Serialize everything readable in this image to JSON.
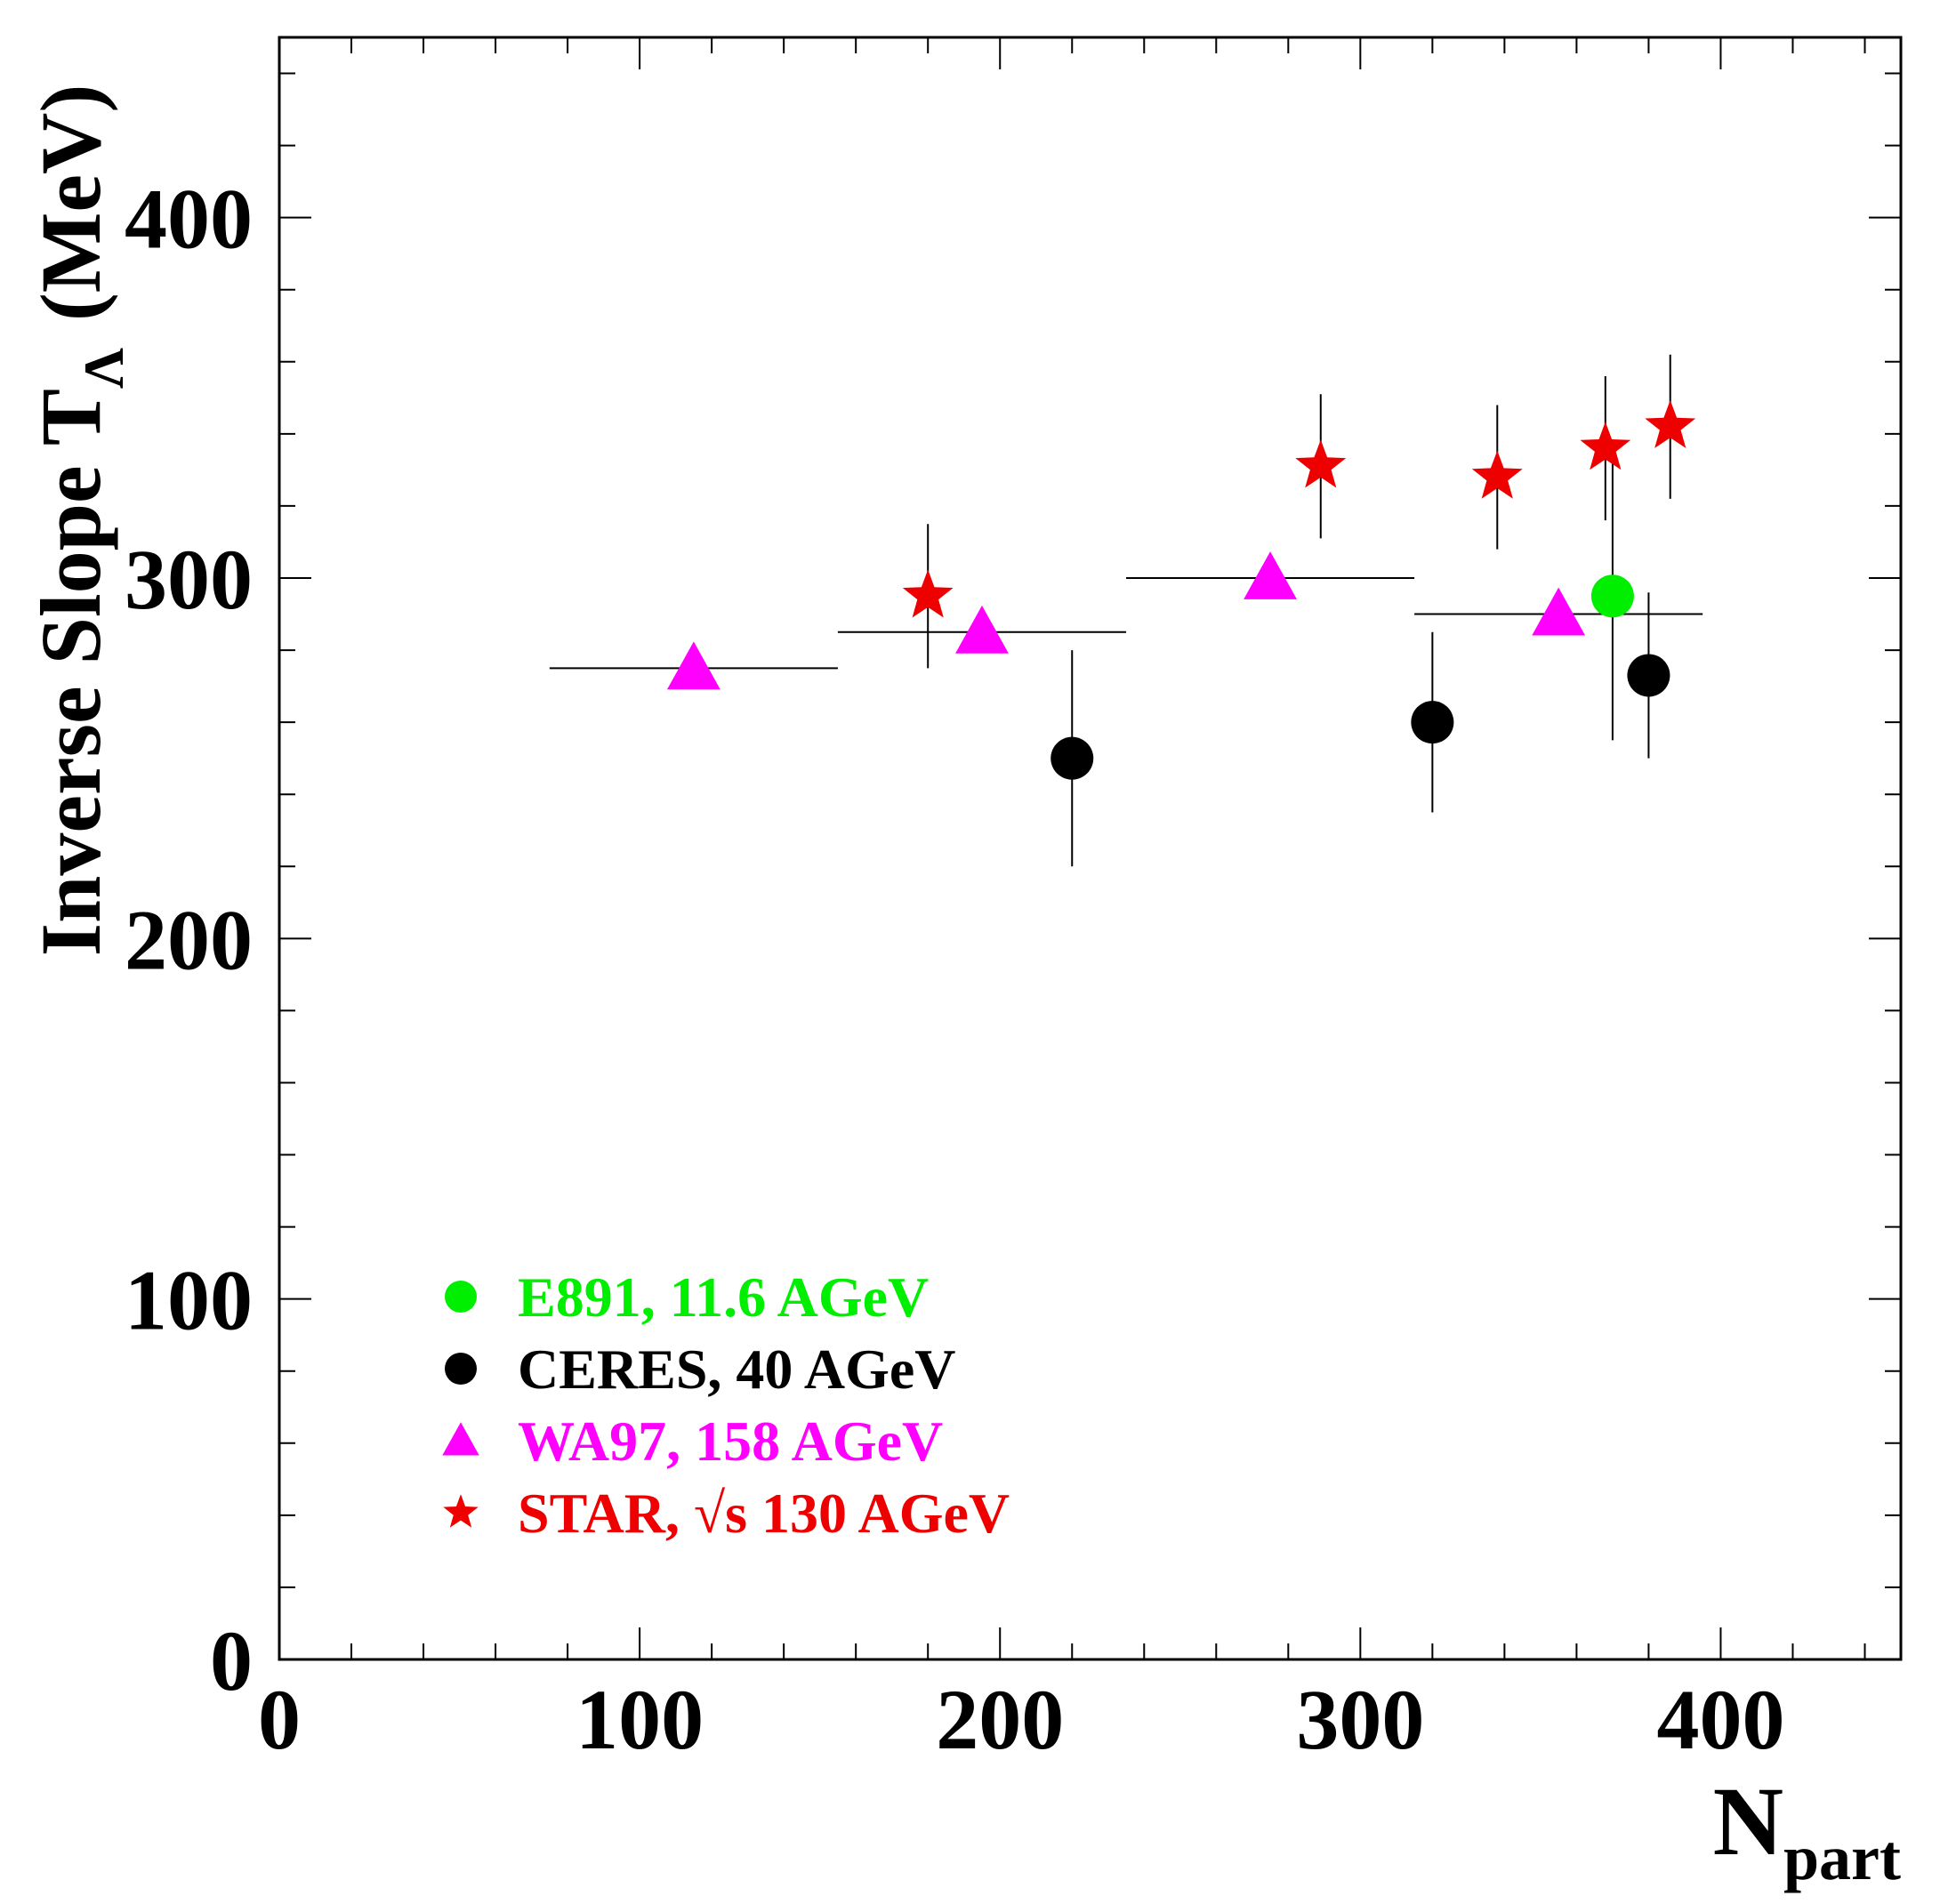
{
  "chart_data": {
    "type": "scatter",
    "title": "",
    "xlabel": "N",
    "xlabel_sub": "part",
    "ylabel": "Inverse Slope T",
    "ylabel_sub": "Λ",
    "ylabel_unit": "(MeV)",
    "xlim": [
      0,
      450
    ],
    "ylim": [
      0,
      450
    ],
    "x_ticks": [
      0,
      100,
      200,
      300,
      400
    ],
    "y_ticks": [
      0,
      100,
      200,
      300,
      400
    ],
    "x_minor_step": 20,
    "y_minor_step": 20,
    "grid": false,
    "legend_position": "bottom-left",
    "series": [
      {
        "name": "E891, 11.6 AGeV",
        "color": "#00ee00",
        "marker": "circle",
        "points": [
          {
            "x": 370,
            "y": 295,
            "yerr": 40
          }
        ]
      },
      {
        "name": "CERES, 40 AGeV",
        "color": "#000000",
        "marker": "circle",
        "points": [
          {
            "x": 220,
            "y": 250,
            "yerr": 30
          },
          {
            "x": 320,
            "y": 260,
            "yerr": 25
          },
          {
            "x": 380,
            "y": 273,
            "yerr": 23
          }
        ]
      },
      {
        "name": "WA97, 158 AGeV",
        "color": "#ff00ff",
        "marker": "triangle",
        "points": [
          {
            "x": 115,
            "y": 275,
            "xerr": 40
          },
          {
            "x": 195,
            "y": 285,
            "xerr": 40
          },
          {
            "x": 275,
            "y": 300,
            "xerr": 40
          },
          {
            "x": 355,
            "y": 290,
            "xerr": 40
          }
        ]
      },
      {
        "name": "STAR, √s 130 AGeV",
        "color": "#ee0000",
        "marker": "star",
        "points": [
          {
            "x": 180,
            "y": 295,
            "yerr": 20
          },
          {
            "x": 289,
            "y": 331,
            "yerr": 20
          },
          {
            "x": 338,
            "y": 328,
            "yerr": 20
          },
          {
            "x": 368,
            "y": 336,
            "yerr": 20
          },
          {
            "x": 386,
            "y": 342,
            "yerr": 20
          }
        ]
      }
    ]
  }
}
